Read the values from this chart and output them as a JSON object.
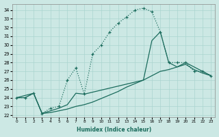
{
  "bg_color": "#cce8e4",
  "grid_color": "#aad4cf",
  "line_color": "#1a6b5c",
  "xlabel": "Humidex (Indice chaleur)",
  "xlim_min": -0.5,
  "xlim_max": 23.5,
  "ylim_min": 21.8,
  "ylim_max": 34.7,
  "yticks": [
    22,
    23,
    24,
    25,
    26,
    27,
    28,
    29,
    30,
    31,
    32,
    33,
    34
  ],
  "xticks": [
    0,
    1,
    2,
    3,
    4,
    5,
    6,
    7,
    8,
    9,
    10,
    11,
    12,
    13,
    14,
    15,
    16,
    17,
    18,
    19,
    20,
    21,
    22,
    23
  ],
  "curve1_x": [
    0,
    1,
    2,
    3,
    4,
    5,
    6,
    7,
    8,
    9,
    10,
    11,
    12,
    13,
    14,
    15,
    16,
    17,
    18,
    19,
    20,
    21,
    22,
    23
  ],
  "curve1_y": [
    24.0,
    24.0,
    24.5,
    22.2,
    22.3,
    22.5,
    22.7,
    23.0,
    23.2,
    23.5,
    23.9,
    24.3,
    24.7,
    25.2,
    25.6,
    26.0,
    26.5,
    27.0,
    27.2,
    27.5,
    27.8,
    27.2,
    26.8,
    26.5
  ],
  "curve2_x": [
    0,
    1,
    2,
    3,
    4,
    5,
    6,
    7,
    8,
    9,
    10,
    11,
    12,
    13,
    14,
    15,
    16,
    17,
    18,
    19,
    20,
    21,
    22,
    23
  ],
  "curve2_y": [
    24.0,
    24.0,
    24.5,
    22.2,
    22.8,
    23.0,
    26.0,
    27.4,
    24.4,
    29.0,
    30.0,
    31.5,
    32.5,
    33.2,
    34.0,
    34.2,
    33.8,
    31.5,
    28.0,
    28.0,
    28.0,
    27.0,
    27.0,
    26.5
  ],
  "curve3_x": [
    0,
    2,
    3,
    4,
    5,
    6,
    7,
    8,
    15,
    16,
    17,
    18,
    19,
    20,
    22,
    23
  ],
  "curve3_y": [
    24.0,
    24.5,
    22.2,
    22.5,
    22.8,
    23.2,
    24.5,
    24.4,
    26.0,
    30.5,
    31.5,
    28.0,
    27.5,
    28.0,
    27.0,
    26.5
  ]
}
